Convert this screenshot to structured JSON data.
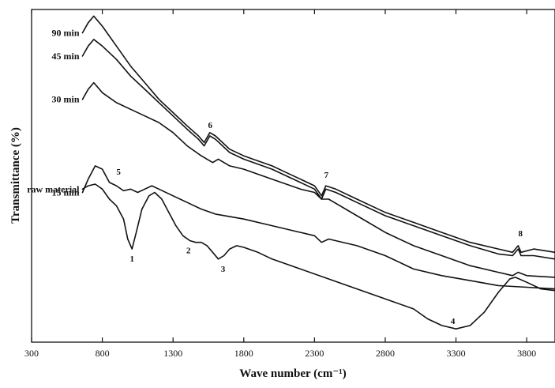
{
  "chart_data": {
    "type": "line",
    "title": "",
    "xlabel": "Wave number",
    "xlabel_unit": "(cm⁻¹)",
    "ylabel": "Transmittance (%)",
    "xlim": [
      300,
      4000
    ],
    "ylim": [
      0,
      100
    ],
    "x_ticks": [
      300,
      800,
      1300,
      1800,
      2300,
      2800,
      3300,
      3800
    ],
    "y_tick_labels_shown": false,
    "grid": false,
    "legend": "none (curves labeled directly at left)",
    "series": [
      {
        "name": "90 min",
        "color": "#111111",
        "points": [
          [
            660,
            93
          ],
          [
            700,
            96
          ],
          [
            740,
            98
          ],
          [
            800,
            95
          ],
          [
            900,
            89
          ],
          [
            1000,
            83
          ],
          [
            1100,
            78
          ],
          [
            1200,
            73
          ],
          [
            1300,
            69
          ],
          [
            1400,
            65
          ],
          [
            1480,
            62
          ],
          [
            1520,
            60
          ],
          [
            1560,
            63
          ],
          [
            1600,
            62
          ],
          [
            1700,
            58
          ],
          [
            1800,
            56
          ],
          [
            1900,
            54.5
          ],
          [
            2000,
            53
          ],
          [
            2100,
            51
          ],
          [
            2200,
            49
          ],
          [
            2300,
            47
          ],
          [
            2350,
            44
          ],
          [
            2380,
            47
          ],
          [
            2450,
            46
          ],
          [
            2600,
            43
          ],
          [
            2800,
            39
          ],
          [
            3000,
            36
          ],
          [
            3200,
            33
          ],
          [
            3400,
            30
          ],
          [
            3600,
            28
          ],
          [
            3700,
            27
          ],
          [
            3740,
            29
          ],
          [
            3760,
            27
          ],
          [
            3850,
            28
          ],
          [
            4000,
            27
          ]
        ]
      },
      {
        "name": "45 min",
        "color": "#111111",
        "points": [
          [
            660,
            86
          ],
          [
            700,
            89
          ],
          [
            740,
            91
          ],
          [
            800,
            89
          ],
          [
            900,
            85
          ],
          [
            1000,
            80
          ],
          [
            1100,
            76
          ],
          [
            1200,
            72
          ],
          [
            1300,
            68
          ],
          [
            1400,
            64
          ],
          [
            1480,
            61
          ],
          [
            1520,
            59
          ],
          [
            1560,
            62
          ],
          [
            1600,
            61
          ],
          [
            1700,
            57
          ],
          [
            1800,
            55
          ],
          [
            1900,
            53.5
          ],
          [
            2000,
            52
          ],
          [
            2100,
            50
          ],
          [
            2200,
            48
          ],
          [
            2300,
            46
          ],
          [
            2350,
            43
          ],
          [
            2380,
            46
          ],
          [
            2450,
            45
          ],
          [
            2600,
            42
          ],
          [
            2800,
            38
          ],
          [
            3000,
            35
          ],
          [
            3200,
            32
          ],
          [
            3400,
            29
          ],
          [
            3600,
            26.5
          ],
          [
            3700,
            26
          ],
          [
            3740,
            28
          ],
          [
            3760,
            26
          ],
          [
            3850,
            26
          ],
          [
            4000,
            25
          ]
        ]
      },
      {
        "name": "30 min",
        "color": "#111111",
        "points": [
          [
            660,
            73
          ],
          [
            700,
            76
          ],
          [
            740,
            78
          ],
          [
            800,
            75
          ],
          [
            900,
            72
          ],
          [
            1000,
            70
          ],
          [
            1100,
            68
          ],
          [
            1200,
            66
          ],
          [
            1300,
            63
          ],
          [
            1400,
            59
          ],
          [
            1500,
            56
          ],
          [
            1580,
            54
          ],
          [
            1620,
            55
          ],
          [
            1700,
            53
          ],
          [
            1800,
            52
          ],
          [
            2000,
            49
          ],
          [
            2200,
            46
          ],
          [
            2300,
            45
          ],
          [
            2350,
            43
          ],
          [
            2400,
            43
          ],
          [
            2600,
            38
          ],
          [
            2800,
            33
          ],
          [
            3000,
            29
          ],
          [
            3200,
            26
          ],
          [
            3400,
            23
          ],
          [
            3600,
            21
          ],
          [
            3700,
            20
          ],
          [
            3740,
            21
          ],
          [
            3800,
            20
          ],
          [
            4000,
            19.5
          ]
        ]
      },
      {
        "name": "15 min",
        "color": "#111111",
        "points": [
          [
            660,
            45
          ],
          [
            700,
            49
          ],
          [
            750,
            53
          ],
          [
            800,
            52
          ],
          [
            850,
            48
          ],
          [
            900,
            47
          ],
          [
            950,
            45.5
          ],
          [
            1000,
            46
          ],
          [
            1050,
            45
          ],
          [
            1100,
            46
          ],
          [
            1150,
            47
          ],
          [
            1200,
            46
          ],
          [
            1300,
            44
          ],
          [
            1400,
            42
          ],
          [
            1500,
            40
          ],
          [
            1600,
            38.5
          ],
          [
            1800,
            37
          ],
          [
            2000,
            35
          ],
          [
            2200,
            33
          ],
          [
            2300,
            32
          ],
          [
            2350,
            30
          ],
          [
            2400,
            31
          ],
          [
            2600,
            29
          ],
          [
            2800,
            26
          ],
          [
            3000,
            22
          ],
          [
            3200,
            20
          ],
          [
            3400,
            18.5
          ],
          [
            3600,
            17
          ],
          [
            3800,
            16.5
          ],
          [
            4000,
            16
          ]
        ]
      },
      {
        "name": "raw material",
        "color": "#111111",
        "points": [
          [
            660,
            46
          ],
          [
            700,
            47
          ],
          [
            750,
            47.5
          ],
          [
            800,
            46
          ],
          [
            850,
            43
          ],
          [
            900,
            41
          ],
          [
            950,
            37
          ],
          [
            980,
            31
          ],
          [
            1010,
            28
          ],
          [
            1040,
            33
          ],
          [
            1080,
            40
          ],
          [
            1130,
            44
          ],
          [
            1170,
            45
          ],
          [
            1220,
            43
          ],
          [
            1270,
            39
          ],
          [
            1320,
            35
          ],
          [
            1370,
            32
          ],
          [
            1420,
            30.5
          ],
          [
            1460,
            30
          ],
          [
            1500,
            30
          ],
          [
            1540,
            29
          ],
          [
            1580,
            27
          ],
          [
            1620,
            25
          ],
          [
            1660,
            26
          ],
          [
            1700,
            28
          ],
          [
            1750,
            29
          ],
          [
            1800,
            28.5
          ],
          [
            1900,
            27
          ],
          [
            2000,
            25
          ],
          [
            2200,
            22
          ],
          [
            2400,
            19
          ],
          [
            2600,
            16
          ],
          [
            2800,
            13
          ],
          [
            3000,
            10
          ],
          [
            3100,
            7
          ],
          [
            3200,
            5
          ],
          [
            3300,
            4
          ],
          [
            3400,
            5
          ],
          [
            3500,
            9
          ],
          [
            3600,
            15
          ],
          [
            3680,
            19
          ],
          [
            3720,
            19.5
          ],
          [
            3800,
            18
          ],
          [
            3900,
            16
          ],
          [
            4000,
            15.5
          ]
        ]
      }
    ],
    "series_labels": {
      "90 min": "90 min",
      "45 min": "45 min",
      "30 min": "30 min",
      "15 min": "15 min",
      "raw material": "raw material"
    },
    "peak_annotations": [
      {
        "text": "1",
        "x": 1010,
        "y": 28
      },
      {
        "text": "2",
        "x": 1420,
        "y": 30.5
      },
      {
        "text": "3",
        "x": 1620,
        "y": 25
      },
      {
        "text": "4",
        "x": 3300,
        "y": 4
      },
      {
        "text": "5",
        "x": 870,
        "y": 48
      },
      {
        "text": "6",
        "x": 1540,
        "y": 62
      },
      {
        "text": "7",
        "x": 2350,
        "y": 47
      },
      {
        "text": "8",
        "x": 3745,
        "y": 29
      }
    ]
  }
}
